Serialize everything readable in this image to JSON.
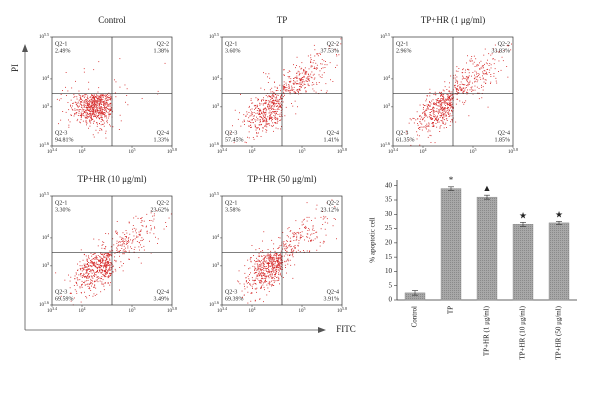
{
  "axis_labels": {
    "x": "FITC",
    "y": "PI"
  },
  "chart_data": [
    {
      "type": "flow",
      "title": "Control",
      "quadrants": [
        "Q2-1",
        "Q2-2",
        "Q2-3",
        "Q2-4"
      ],
      "values": [
        2.49,
        1.38,
        94.81,
        1.33
      ],
      "value_labels": [
        "2.49%",
        "1.38%",
        "94.81%",
        "1.33%"
      ],
      "color": "#d42424",
      "xlim": [
        3.4,
        5.8
      ],
      "xticks": [
        {
          "value": 3.4,
          "label": "10^3.4"
        },
        {
          "value": 4,
          "label": "10^4"
        },
        {
          "value": 5,
          "label": "10^5"
        },
        {
          "value": 5.8,
          "label": "10^5.8"
        }
      ],
      "ylim": [
        1.6,
        5.5
      ],
      "yticks": [
        {
          "value": 1.6,
          "label": "10^1.6"
        },
        {
          "value": 3,
          "label": "10^3"
        },
        {
          "value": 4,
          "label": "10^4"
        },
        {
          "value": 5.5,
          "label": "10^5.5"
        }
      ]
    },
    {
      "type": "flow",
      "title": "TP",
      "quadrants": [
        "Q2-1",
        "Q2-2",
        "Q2-3",
        "Q2-4"
      ],
      "values": [
        3.6,
        37.53,
        57.45,
        1.41
      ],
      "value_labels": [
        "3.60%",
        "37.53%",
        "57.45%",
        "1.41%"
      ],
      "color": "#d42424",
      "xlim": [
        3.4,
        5.8
      ],
      "xticks": [
        {
          "value": 3.4,
          "label": "10^3.4"
        },
        {
          "value": 4,
          "label": "10^4"
        },
        {
          "value": 5,
          "label": "10^5"
        },
        {
          "value": 5.8,
          "label": "10^5.8"
        }
      ],
      "ylim": [
        1.6,
        5.5
      ],
      "yticks": [
        {
          "value": 1.6,
          "label": "10^1.6"
        },
        {
          "value": 3,
          "label": "10^3"
        },
        {
          "value": 4,
          "label": "10^4"
        },
        {
          "value": 5.5,
          "label": "10^5.5"
        }
      ]
    },
    {
      "type": "flow",
      "title": "TP+HR (1 μg/ml)",
      "quadrants": [
        "Q2-1",
        "Q2-2",
        "Q2-3",
        "Q2-4"
      ],
      "values": [
        2.96,
        33.83,
        61.35,
        1.85
      ],
      "value_labels": [
        "2.96%",
        "33.83%",
        "61.35%",
        "1.85%"
      ],
      "color": "#d42424",
      "xlim": [
        3.4,
        5.8
      ],
      "xticks": [
        {
          "value": 3.4,
          "label": "10^3.4"
        },
        {
          "value": 4,
          "label": "10^4"
        },
        {
          "value": 5,
          "label": "10^5"
        },
        {
          "value": 5.8,
          "label": "10^5.8"
        }
      ],
      "ylim": [
        1.6,
        5.5
      ],
      "yticks": [
        {
          "value": 1.6,
          "label": "10^1.6"
        },
        {
          "value": 3,
          "label": "10^3"
        },
        {
          "value": 4,
          "label": "10^4"
        },
        {
          "value": 5.5,
          "label": "10^5.5"
        }
      ]
    },
    {
      "type": "flow",
      "title": "TP+HR (10 μg/ml)",
      "quadrants": [
        "Q2-1",
        "Q2-2",
        "Q2-3",
        "Q2-4"
      ],
      "values": [
        3.3,
        23.62,
        69.59,
        3.49
      ],
      "value_labels": [
        "3.30%",
        "23.62%",
        "69.59%",
        "3.49%"
      ],
      "color": "#d42424",
      "xlim": [
        3.4,
        5.8
      ],
      "xticks": [
        {
          "value": 3.4,
          "label": "10^3.4"
        },
        {
          "value": 4,
          "label": "10^4"
        },
        {
          "value": 5,
          "label": "10^5"
        },
        {
          "value": 5.8,
          "label": "10^5.8"
        }
      ],
      "ylim": [
        1.6,
        5.5
      ],
      "yticks": [
        {
          "value": 1.6,
          "label": "10^1.6"
        },
        {
          "value": 3,
          "label": "10^3"
        },
        {
          "value": 4,
          "label": "10^4"
        },
        {
          "value": 5.5,
          "label": "10^5.5"
        }
      ]
    },
    {
      "type": "flow",
      "title": "TP+HR (50 μg/ml)",
      "quadrants": [
        "Q2-1",
        "Q2-2",
        "Q2-3",
        "Q2-4"
      ],
      "values": [
        3.58,
        23.12,
        69.39,
        3.91
      ],
      "value_labels": [
        "3.58%",
        "23.12%",
        "69.39%",
        "3.91%"
      ],
      "color": "#d42424",
      "xlim": [
        3.4,
        5.8
      ],
      "xticks": [
        {
          "value": 3.4,
          "label": "10^3.4"
        },
        {
          "value": 4,
          "label": "10^4"
        },
        {
          "value": 5,
          "label": "10^5"
        },
        {
          "value": 5.8,
          "label": "10^5.8"
        }
      ],
      "ylim": [
        1.6,
        5.5
      ],
      "yticks": [
        {
          "value": 1.6,
          "label": "10^1.6"
        },
        {
          "value": 3,
          "label": "10^3"
        },
        {
          "value": 4,
          "label": "10^4"
        },
        {
          "value": 5.5,
          "label": "10^5.5"
        }
      ]
    },
    {
      "type": "bar",
      "y_label": "% apoptotic cell",
      "categories": [
        "Control",
        "TP",
        "TP+HR (1 μg/ml)",
        "TP+HR (10 μg/ml)",
        "TP+HR (50 μg/ml)"
      ],
      "values": [
        2.5,
        39,
        36,
        26.5,
        27
      ],
      "errors": [
        0.8,
        0.6,
        0.7,
        0.7,
        0.5
      ],
      "annotations": [
        "*",
        "▲",
        "★",
        "★"
      ],
      "color": "#9a9a9a",
      "ylim": [
        0,
        42
      ],
      "yticks": [
        0,
        5,
        10,
        15,
        20,
        25,
        30,
        35,
        40
      ]
    }
  ]
}
